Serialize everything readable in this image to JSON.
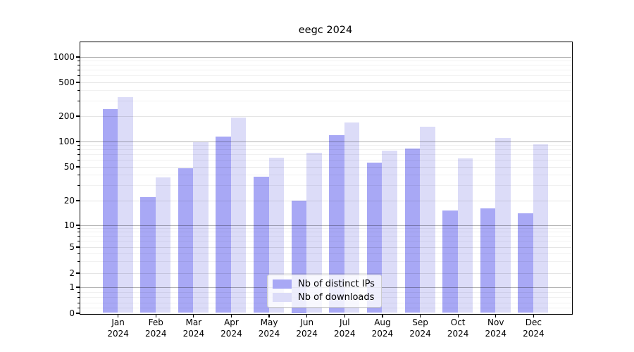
{
  "title": "eegc 2024",
  "chart_data": {
    "type": "bar",
    "title": "eegc 2024",
    "categories": [
      "Jan 2024",
      "Feb 2024",
      "Mar 2024",
      "Apr 2024",
      "May 2024",
      "Jun 2024",
      "Jul 2024",
      "Aug 2024",
      "Sep 2024",
      "Oct 2024",
      "Nov 2024",
      "Dec 2024"
    ],
    "series": [
      {
        "name": "Nb of distinct IPs",
        "color": "#a8a8f5",
        "values": [
          240,
          22,
          48,
          113,
          38,
          20,
          117,
          56,
          81,
          15,
          16,
          14
        ]
      },
      {
        "name": "Nb of downloads",
        "color": "#dcdcf8",
        "values": [
          330,
          37,
          98,
          192,
          64,
          73,
          165,
          77,
          147,
          62,
          110,
          91
        ]
      }
    ],
    "xlabel": "",
    "ylabel": "",
    "yscale": "symlog",
    "y_ticks": [
      0,
      1,
      2,
      5,
      10,
      20,
      50,
      100,
      200,
      500,
      1000
    ],
    "ylim": [
      0,
      1500
    ],
    "grid": true,
    "legend_position": "lower center"
  }
}
